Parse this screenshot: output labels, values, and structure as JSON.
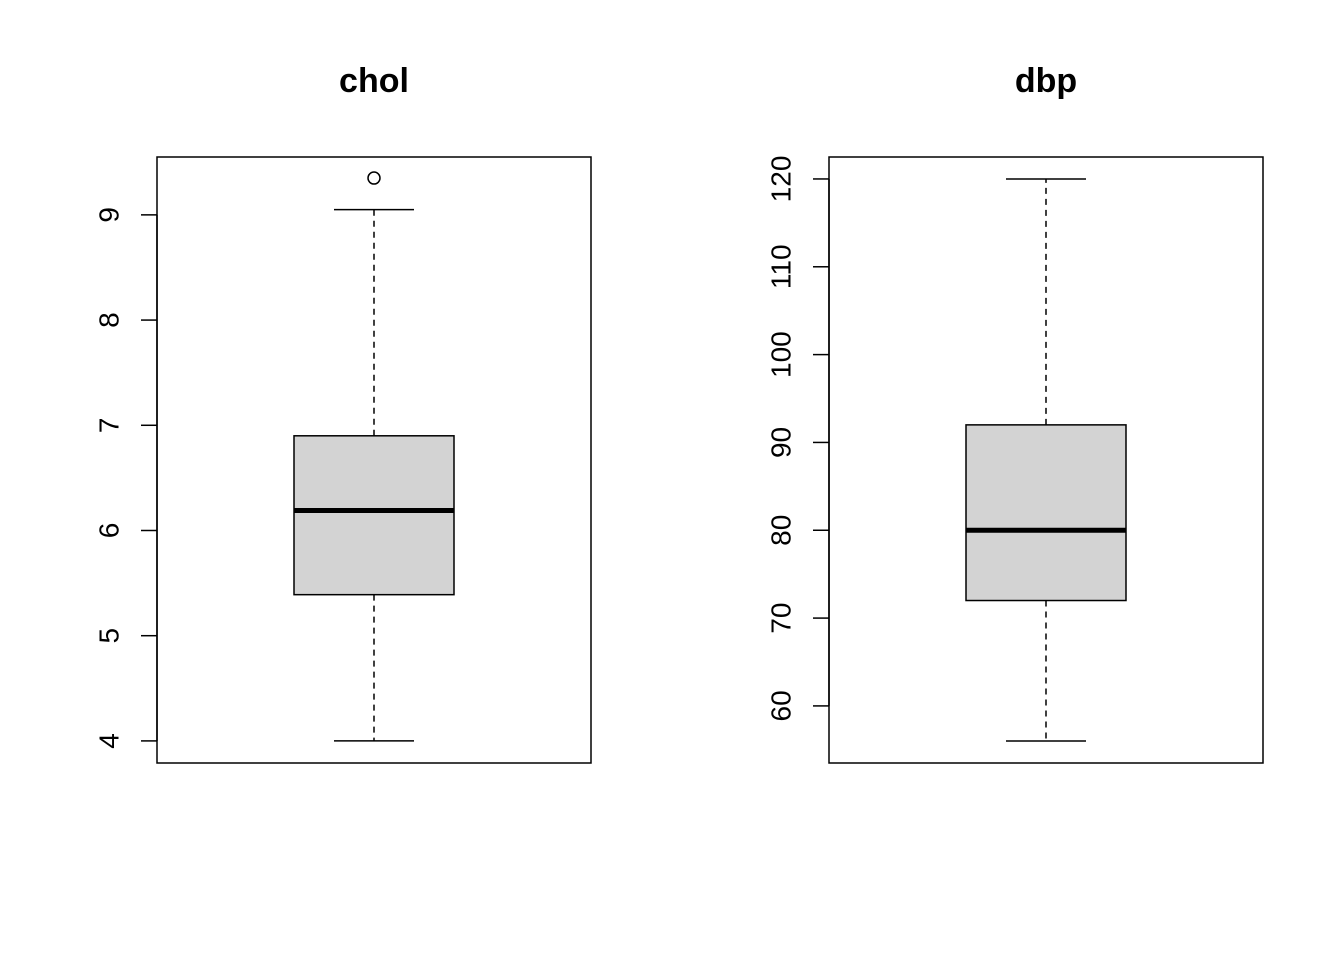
{
  "chart_data": [
    {
      "type": "boxplot",
      "title": "chol",
      "xlabel": "",
      "ylabel": "",
      "ylim": [
        3.79,
        9.55
      ],
      "yticks": [
        4,
        5,
        6,
        7,
        8,
        9
      ],
      "box": {
        "whisker_low": 4.0,
        "q1": 5.39,
        "median": 6.19,
        "q3": 6.9,
        "whisker_high": 9.05,
        "outliers": [
          9.35
        ]
      },
      "fill": "#d3d3d3"
    },
    {
      "type": "boxplot",
      "title": "dbp",
      "xlabel": "",
      "ylabel": "",
      "ylim": [
        53.5,
        122.5
      ],
      "yticks": [
        60,
        70,
        80,
        90,
        100,
        110,
        120
      ],
      "box": {
        "whisker_low": 56,
        "q1": 72,
        "median": 80,
        "q3": 92,
        "whisker_high": 120,
        "outliers": []
      },
      "fill": "#d3d3d3"
    }
  ]
}
